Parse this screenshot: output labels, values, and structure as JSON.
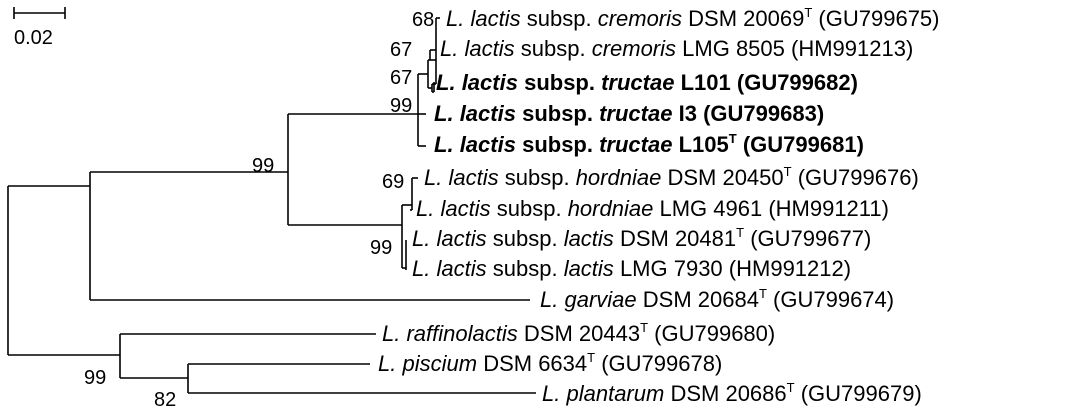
{
  "scale_bar": {
    "label": "0.02"
  },
  "taxa": [
    {
      "genus": "L.",
      "species": "lactis",
      "subsp_word": "subsp.",
      "subsp": "cremoris",
      "strain": "DSM 20069",
      "type_mark": "T",
      "accession": "(GU799675)",
      "bold": false
    },
    {
      "genus": "L.",
      "species": "lactis",
      "subsp_word": "subsp.",
      "subsp": "cremoris",
      "strain": "LMG 8505",
      "type_mark": "",
      "accession": "(HM991213)",
      "bold": false
    },
    {
      "genus": "L.",
      "species": "lactis",
      "subsp_word": "subsp.",
      "subsp": "tructae",
      "strain": "L101",
      "type_mark": "",
      "accession": "(GU799682)",
      "bold": true
    },
    {
      "genus": "L.",
      "species": "lactis",
      "subsp_word": "subsp.",
      "subsp": "tructae",
      "strain": "I3",
      "type_mark": "",
      "accession": "(GU799683)",
      "bold": true
    },
    {
      "genus": "L.",
      "species": "lactis",
      "subsp_word": "subsp.",
      "subsp": "tructae",
      "strain": "L105",
      "type_mark": "T",
      "accession": "(GU799681)",
      "bold": true
    },
    {
      "genus": "L.",
      "species": "lactis",
      "subsp_word": "subsp.",
      "subsp": "hordniae",
      "strain": "DSM 20450",
      "type_mark": "T",
      "accession": "(GU799676)",
      "bold": false
    },
    {
      "genus": "L.",
      "species": "lactis",
      "subsp_word": "subsp.",
      "subsp": "hordniae",
      "strain": "LMG 4961",
      "type_mark": "",
      "accession": "(HM991211)",
      "bold": false
    },
    {
      "genus": "L.",
      "species": "lactis",
      "subsp_word": "subsp.",
      "subsp": "lactis",
      "strain": "DSM 20481",
      "type_mark": "T",
      "accession": "(GU799677)",
      "bold": false
    },
    {
      "genus": "L.",
      "species": "lactis",
      "subsp_word": "subsp.",
      "subsp": "lactis",
      "strain": "LMG 7930",
      "type_mark": "",
      "accession": "(HM991212)",
      "bold": false
    },
    {
      "genus": "L.",
      "species": "garviae",
      "subsp_word": "",
      "subsp": "",
      "strain": "DSM 20684",
      "type_mark": "T",
      "accession": "(GU799674)",
      "bold": false
    },
    {
      "genus": "L.",
      "species": "raffinolactis",
      "subsp_word": "",
      "subsp": "",
      "strain": "DSM 20443",
      "type_mark": "T",
      "accession": "(GU799680)",
      "bold": false
    },
    {
      "genus": "L.",
      "species": "piscium",
      "subsp_word": "",
      "subsp": "",
      "strain": "DSM 6634",
      "type_mark": "T",
      "accession": "(GU799678)",
      "bold": false
    },
    {
      "genus": "L.",
      "species": "plantarum",
      "subsp_word": "",
      "subsp": "",
      "strain": "DSM 20686",
      "type_mark": "T",
      "accession": "(GU799679)",
      "bold": false
    }
  ],
  "bootstrap": [
    "68",
    "67",
    "67",
    "99",
    "99",
    "69",
    "99",
    "99",
    "82"
  ]
}
